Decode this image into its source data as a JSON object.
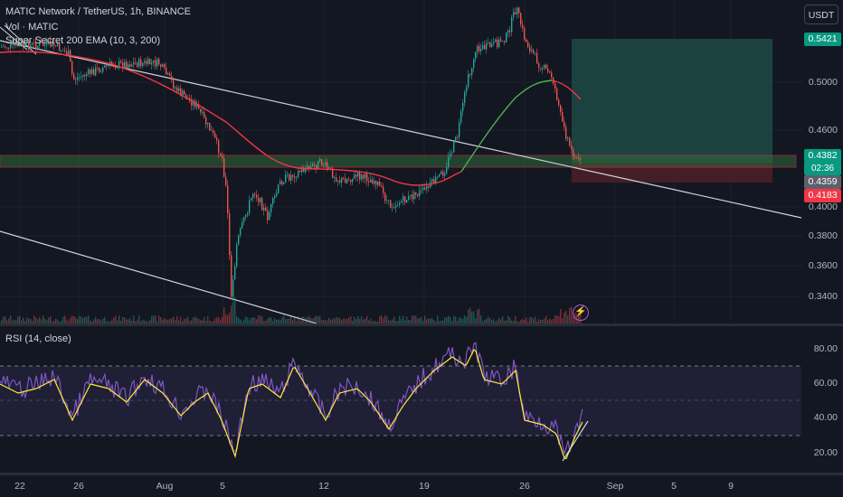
{
  "legend": {
    "symbol_line": "MATIC Network / TetherUS, 1h, BINANCE",
    "vol_line": "Vol · MATIC",
    "ema_line": "Super Secret 200 EMA (10, 3, 200)",
    "rsi_line": "RSI (14, close)"
  },
  "currency_button": "USDT",
  "price_axis": {
    "labels": [
      "0.5000",
      "0.4600",
      "0.4000",
      "0.3800",
      "0.3600",
      "0.3400"
    ]
  },
  "price_tags": {
    "target": "0.5421",
    "current": "0.4382",
    "countdown": "02:36",
    "level": "0.4359",
    "stop": "0.4183"
  },
  "rsi_axis": {
    "labels": [
      "80.00",
      "60.00",
      "40.00",
      "20.00"
    ]
  },
  "date_axis": {
    "labels": [
      "22",
      "26",
      "Aug",
      "5",
      "12",
      "19",
      "26",
      "Sep",
      "5",
      "9"
    ]
  },
  "colors": {
    "background": "#131722",
    "up": "#26a69a",
    "down": "#ef5350",
    "target_zone": "#1f4a45",
    "stop_zone": "#4a1f27",
    "ema_red": "#f23645",
    "ema_green": "#4caf50",
    "rsi_line": "#7e57c2",
    "rsi_ma": "#ffeb3b",
    "trendline": "#d1d4dc"
  },
  "icons": {
    "alert_button": "lightning-icon"
  }
}
